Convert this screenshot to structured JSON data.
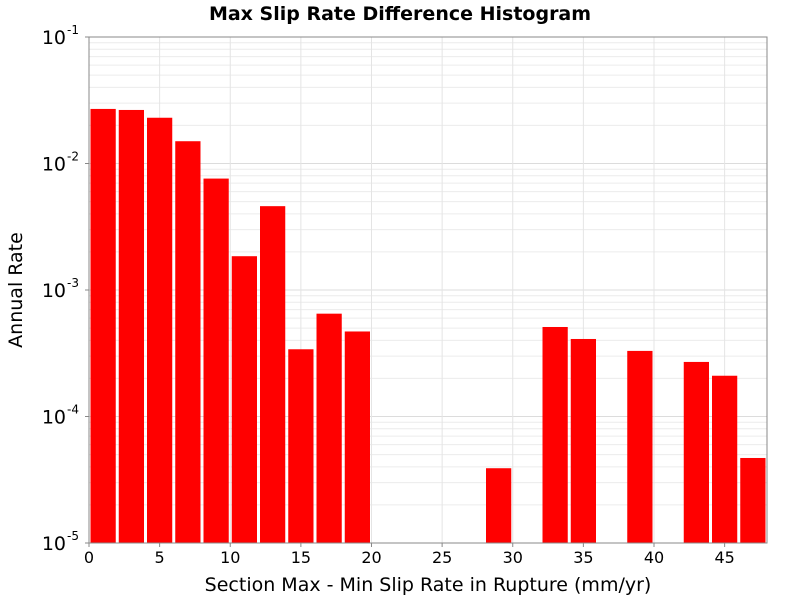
{
  "chart_data": {
    "type": "bar",
    "title": "Max Slip Rate Difference Histogram",
    "xlabel": "Section Max - Min Slip Rate in Rupture (mm/yr)",
    "ylabel": "Annual Rate",
    "y_scale": "log",
    "xlim": [
      0,
      48
    ],
    "ylim": [
      1e-05,
      0.1
    ],
    "grid": true,
    "bar_color": "#ff0000",
    "bin_width": 2,
    "x_ticks": [
      0,
      5,
      10,
      15,
      20,
      25,
      30,
      35,
      40,
      45
    ],
    "y_ticks": [
      {
        "value": 0.1,
        "base": "10",
        "exp": "-1"
      },
      {
        "value": 0.01,
        "base": "10",
        "exp": "-2"
      },
      {
        "value": 0.001,
        "base": "10",
        "exp": "-3"
      },
      {
        "value": 0.0001,
        "base": "10",
        "exp": "-4"
      },
      {
        "value": 1e-05,
        "base": "10",
        "exp": "-5"
      }
    ],
    "bins": [
      {
        "x": 1,
        "value": 0.027
      },
      {
        "x": 3,
        "value": 0.0265
      },
      {
        "x": 5,
        "value": 0.023
      },
      {
        "x": 7,
        "value": 0.015
      },
      {
        "x": 9,
        "value": 0.0076
      },
      {
        "x": 11,
        "value": 0.00185
      },
      {
        "x": 13,
        "value": 0.0046
      },
      {
        "x": 15,
        "value": 0.00034
      },
      {
        "x": 17,
        "value": 0.00065
      },
      {
        "x": 19,
        "value": 0.00047
      },
      {
        "x": 29,
        "value": 3.9e-05
      },
      {
        "x": 33,
        "value": 0.00051
      },
      {
        "x": 35,
        "value": 0.00041
      },
      {
        "x": 39,
        "value": 0.00033
      },
      {
        "x": 43,
        "value": 0.00027
      },
      {
        "x": 45,
        "value": 0.00021
      },
      {
        "x": 47,
        "value": 4.7e-05
      }
    ]
  }
}
